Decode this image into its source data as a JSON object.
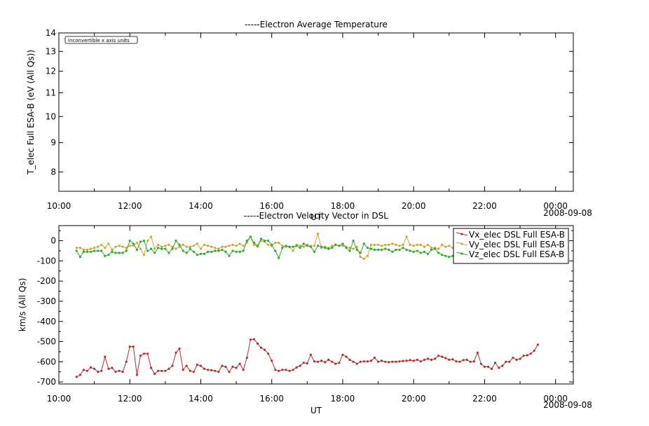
{
  "chart_data": [
    {
      "type": "line",
      "title": "-----Electron Average Temperature",
      "ylabel": "T_elec Full ESA-B (eV (All Qs))",
      "xlabel": "UT",
      "y_scale": "log",
      "ylim": [
        7.4,
        14
      ],
      "y_ticks": [
        {
          "value": 8,
          "label": "8"
        },
        {
          "value": 9,
          "label": "9"
        },
        {
          "value": 10,
          "label": "10"
        },
        {
          "value": 11,
          "label": "11"
        },
        {
          "value": 12,
          "label": "12"
        },
        {
          "value": 13,
          "label": "13"
        },
        {
          "value": 14,
          "label": "14"
        }
      ],
      "x_ticks": [
        {
          "hour": 10,
          "label": "10:00"
        },
        {
          "hour": 12,
          "label": "12:00"
        },
        {
          "hour": 14,
          "label": "14:00"
        },
        {
          "hour": 16,
          "label": "16:00"
        },
        {
          "hour": 18,
          "label": "18:00"
        },
        {
          "hour": 20,
          "label": "20:00"
        },
        {
          "hour": 22,
          "label": "22:00"
        },
        {
          "hour": 24,
          "label": "00:00"
        }
      ],
      "xlim_hours": [
        10,
        24.5
      ],
      "date_label": "2008-09-08",
      "annotation": "inconvertible x axis units",
      "series": []
    },
    {
      "type": "line",
      "title": "-----Electron Velocity Vector in DSL",
      "ylabel": "km/s (All Qs)",
      "xlabel": "UT",
      "ylim": [
        -710,
        75
      ],
      "y_ticks": [
        {
          "value": 0,
          "label": "0"
        },
        {
          "value": -100,
          "label": "-100"
        },
        {
          "value": -200,
          "label": "-200"
        },
        {
          "value": -300,
          "label": "-300"
        },
        {
          "value": -400,
          "label": "-400"
        },
        {
          "value": -500,
          "label": "-500"
        },
        {
          "value": -600,
          "label": "-600"
        },
        {
          "value": -700,
          "label": "-700"
        }
      ],
      "x_ticks": [
        {
          "hour": 10,
          "label": "10:00"
        },
        {
          "hour": 12,
          "label": "12:00"
        },
        {
          "hour": 14,
          "label": "14:00"
        },
        {
          "hour": 16,
          "label": "16:00"
        },
        {
          "hour": 18,
          "label": "18:00"
        },
        {
          "hour": 20,
          "label": "20:00"
        },
        {
          "hour": 22,
          "label": "22:00"
        },
        {
          "hour": 24,
          "label": "00:00"
        }
      ],
      "xlim_hours": [
        10,
        24.5
      ],
      "date_label": "2008-09-08",
      "legend_position": "top-right",
      "series": [
        {
          "name": "Vx_elec DSL Full ESA-B",
          "color": "#b03030",
          "x_start_hour": 10.5,
          "x_step_hours": 0.1,
          "values": [
            -675,
            -665,
            -640,
            -645,
            -628,
            -635,
            -650,
            -645,
            -575,
            -635,
            -630,
            -650,
            -645,
            -650,
            -600,
            -525,
            -525,
            -665,
            -570,
            -560,
            -560,
            -630,
            -660,
            -645,
            -645,
            -645,
            -635,
            -620,
            -555,
            -535,
            -640,
            -620,
            -645,
            -650,
            -615,
            -620,
            -635,
            -640,
            -642,
            -645,
            -650,
            -620,
            -625,
            -650,
            -625,
            -630,
            -610,
            -640,
            -580,
            -490,
            -488,
            -510,
            -530,
            -540,
            -560,
            -595,
            -640,
            -645,
            -640,
            -640,
            -645,
            -640,
            -628,
            -620,
            -605,
            -608,
            -565,
            -598,
            -600,
            -595,
            -602,
            -590,
            -600,
            -610,
            -605,
            -565,
            -575,
            -590,
            -600,
            -610,
            -600,
            -598,
            -598,
            -595,
            -580,
            -600,
            -595,
            -600,
            -602,
            -600,
            -600,
            -598,
            -596,
            -595,
            -592,
            -595,
            -590,
            -598,
            -590,
            -585,
            -590,
            -585,
            -570,
            -575,
            -582,
            -590,
            -588,
            -598,
            -600,
            -592,
            -590,
            -600,
            -598,
            -555,
            -610,
            -625,
            -625,
            -635,
            -605,
            -630,
            -620,
            -600,
            -600,
            -580,
            -590,
            -585,
            -570,
            -568,
            -560,
            -545,
            -515
          ]
        },
        {
          "name": "Vy_elec DSL Full ESA-B",
          "color": "#c8a832",
          "x_start_hour": 10.5,
          "x_step_hours": 0.1,
          "values": [
            -35,
            -35,
            -45,
            -45,
            -40,
            -35,
            -30,
            -20,
            -35,
            -15,
            -45,
            -30,
            -25,
            -30,
            -35,
            -25,
            -25,
            -10,
            -40,
            -70,
            0,
            20,
            -40,
            -20,
            -30,
            -25,
            -20,
            -30,
            -40,
            -30,
            -20,
            -30,
            -30,
            -25,
            -15,
            -40,
            -20,
            -25,
            -30,
            -35,
            -40,
            -30,
            -30,
            -25,
            -20,
            -25,
            -15,
            -25,
            -10,
            20,
            -20,
            -30,
            0,
            -5,
            -20,
            -25,
            -10,
            -10,
            -25,
            -30,
            -30,
            -50,
            -20,
            -25,
            -30,
            -20,
            -25,
            -25,
            35,
            -35,
            -30,
            -35,
            -25,
            -20,
            -25,
            -25,
            -30,
            -35,
            -40,
            -30,
            -80,
            -90,
            -75,
            -20,
            -20,
            -20,
            -25,
            -20,
            -20,
            -15,
            -20,
            -25,
            -20,
            20,
            -20,
            -25,
            -20,
            -20,
            -30,
            -20,
            -35,
            -35,
            -40,
            -20,
            -30,
            -25,
            -35,
            -40,
            -45,
            -30,
            -50,
            -40,
            -60,
            -40,
            -45,
            -50,
            -55,
            -60,
            -50,
            -45,
            -50,
            -55,
            -40,
            -40,
            -45,
            -50,
            -55,
            -60,
            -55,
            -50
          ]
        },
        {
          "name": "Vz_elec DSL Full ESA-B",
          "color": "#30a830",
          "x_start_hour": 10.5,
          "x_step_hours": 0.1,
          "values": [
            -50,
            -80,
            -55,
            -55,
            -55,
            -50,
            -50,
            -50,
            -75,
            -70,
            -55,
            -60,
            -60,
            -60,
            -50,
            0,
            -15,
            -45,
            -5,
            0,
            -50,
            -40,
            -60,
            -35,
            -40,
            -40,
            -60,
            -40,
            0,
            -20,
            -50,
            -60,
            -40,
            -55,
            -70,
            -65,
            -65,
            -55,
            -55,
            -50,
            -50,
            -45,
            -55,
            -75,
            -50,
            -55,
            -55,
            -50,
            0,
            20,
            -10,
            -25,
            10,
            0,
            0,
            -20,
            -50,
            -85,
            -35,
            -25,
            -30,
            -30,
            -25,
            -35,
            -15,
            -25,
            -30,
            -55,
            -25,
            -30,
            -35,
            -40,
            -35,
            -20,
            -25,
            -15,
            -35,
            -50,
            0,
            -45,
            -60,
            -15,
            -35,
            -40,
            -45,
            -45,
            -45,
            -40,
            -45,
            -55,
            -45,
            -45,
            -35,
            -45,
            -50,
            -55,
            -50,
            -60,
            -55,
            -65,
            -45,
            -40,
            -60,
            -70,
            -75,
            -80,
            -75,
            -70,
            -65,
            -70,
            -65,
            -70,
            -60,
            -60,
            -75,
            -70,
            -75,
            -70,
            -60,
            -65,
            -60,
            -55,
            -50,
            -55,
            -60,
            -55,
            -50,
            -45,
            -50,
            -55,
            -50
          ]
        }
      ]
    }
  ]
}
